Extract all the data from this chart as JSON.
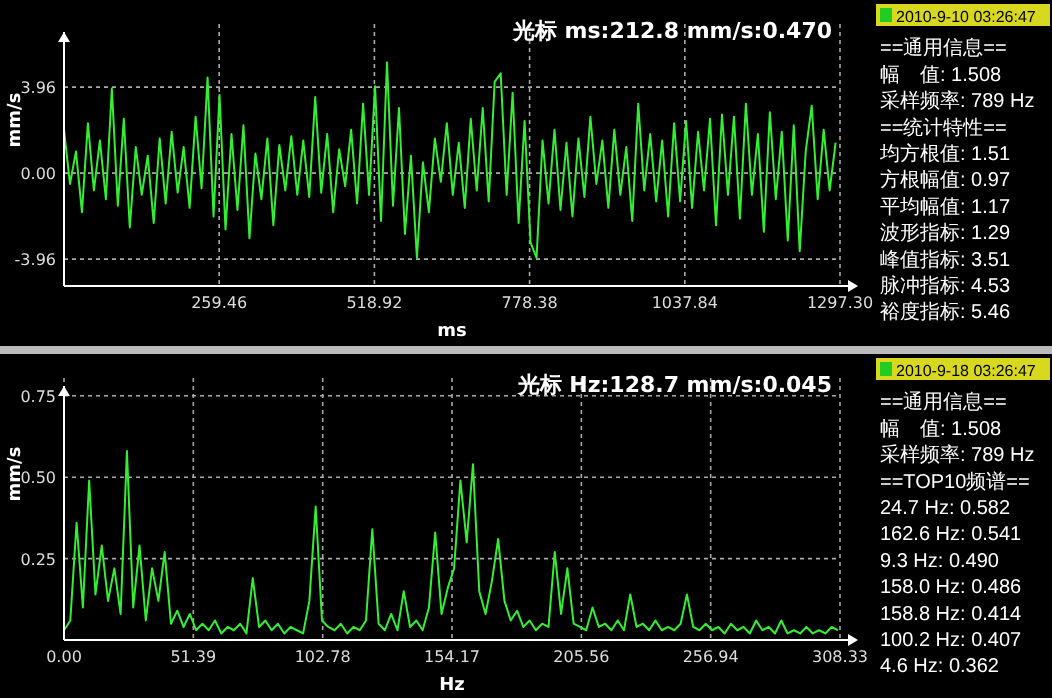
{
  "chart_data": [
    {
      "type": "line",
      "title": "光标 ms:212.8   mm/s:0.470",
      "xlabel": "ms",
      "ylabel": "mm/s",
      "grid": true,
      "xlim": [
        0,
        1297.3
      ],
      "ylim": [
        -5.2,
        6.5
      ],
      "xticks": [
        259.46,
        518.92,
        778.38,
        1037.84,
        {
          "value": 1297.3,
          "label": "1297.30"
        }
      ],
      "yticks": [
        {
          "value": -3.96,
          "label": "-3.96"
        },
        {
          "value": 0,
          "label": "0.00"
        },
        3.96
      ],
      "x": [
        0,
        10,
        20,
        30,
        40,
        50,
        60,
        70,
        80,
        90,
        100,
        110,
        120,
        130,
        140,
        150,
        160,
        170,
        180,
        190,
        200,
        210,
        220,
        230,
        240,
        250,
        260,
        270,
        280,
        290,
        300,
        310,
        320,
        330,
        340,
        350,
        360,
        370,
        380,
        390,
        400,
        410,
        420,
        430,
        440,
        450,
        460,
        470,
        480,
        490,
        500,
        510,
        520,
        530,
        540,
        550,
        560,
        570,
        580,
        590,
        600,
        610,
        620,
        630,
        640,
        650,
        660,
        670,
        680,
        690,
        700,
        710,
        720,
        730,
        740,
        750,
        760,
        770,
        780,
        790,
        800,
        810,
        820,
        830,
        840,
        850,
        860,
        870,
        880,
        890,
        900,
        910,
        920,
        930,
        940,
        950,
        960,
        970,
        980,
        990,
        1000,
        1010,
        1020,
        1030,
        1040,
        1050,
        1060,
        1070,
        1080,
        1090,
        1100,
        1110,
        1120,
        1130,
        1140,
        1150,
        1160,
        1170,
        1180,
        1190,
        1200,
        1210,
        1220,
        1230,
        1240,
        1250,
        1260,
        1270,
        1280,
        1290
      ],
      "series": [
        {
          "color": "#33ee33",
          "values": [
            2.0,
            -0.5,
            1.0,
            -1.8,
            2.3,
            -0.8,
            1.5,
            -1.2,
            3.9,
            -1.5,
            2.5,
            -2.5,
            1.2,
            -1.0,
            0.8,
            -2.3,
            1.6,
            -1.4,
            1.9,
            -0.9,
            1.2,
            -1.6,
            2.6,
            -0.7,
            4.4,
            -2.0,
            3.6,
            -2.6,
            1.8,
            -1.7,
            2.2,
            -3.0,
            0.9,
            -1.2,
            1.6,
            -2.4,
            1.3,
            -0.8,
            1.7,
            -1.0,
            1.5,
            -1.1,
            3.5,
            -0.9,
            1.8,
            -1.8,
            1.1,
            -0.6,
            2.0,
            -1.4,
            3.2,
            -1.0,
            4.0,
            -2.2,
            5.1,
            -1.5,
            3.0,
            -2.8,
            0.8,
            -3.9,
            0.5,
            -1.8,
            1.6,
            -0.4,
            2.3,
            -1.0,
            1.4,
            -1.6,
            2.5,
            -0.8,
            3.0,
            -1.3,
            4.2,
            4.6,
            -1.0,
            3.7,
            -2.3,
            2.4,
            -3.2,
            -3.9,
            1.5,
            -1.4,
            2.0,
            -1.7,
            1.4,
            -2.0,
            1.6,
            -1.1,
            2.6,
            -0.5,
            1.5,
            -1.6,
            2.0,
            -1.0,
            1.2,
            -2.2,
            3.2,
            -0.8,
            1.8,
            -1.3,
            1.5,
            -2.0,
            2.3,
            -1.3,
            2.4,
            -1.6,
            1.9,
            -0.8,
            2.5,
            -2.4,
            2.7,
            -1.0,
            2.6,
            -2.1,
            3.2,
            -1.0,
            1.8,
            -2.7,
            2.8,
            -1.2,
            1.9,
            -3.1,
            2.2,
            -3.6,
            1.0,
            3.1,
            -1.2,
            2.0,
            -0.8,
            1.4
          ]
        }
      ],
      "annotations": [
        "2010-9-10 03:26:47",
        "==通用信息==",
        "幅　值: 1.508",
        "采样频率: 789 Hz",
        "==统计特性==",
        "均方根值: 1.51",
        "方根幅值: 0.97",
        "平均幅值: 1.17",
        "波形指标: 1.29",
        "峰值指标: 3.51",
        "脉冲指标: 4.53",
        "裕度指标: 5.46"
      ]
    },
    {
      "type": "line",
      "title": "光标 Hz:128.7   mm/s:0.045",
      "xlabel": "Hz",
      "ylabel": "mm/s",
      "grid": true,
      "xlim": [
        0,
        308.33
      ],
      "ylim": [
        0,
        0.78
      ],
      "xticks": [
        {
          "value": 0,
          "label": "0.00"
        },
        51.39,
        102.78,
        154.17,
        205.56,
        256.94,
        308.33
      ],
      "yticks": [
        0.25,
        {
          "value": 0.5,
          "label": "0.50"
        },
        0.75
      ],
      "x": [
        0,
        2.5,
        5,
        7.5,
        10,
        12.5,
        15,
        17.5,
        20,
        22.5,
        25,
        27.5,
        30,
        32.5,
        35,
        37.5,
        40,
        42.5,
        45,
        47.5,
        50,
        52.5,
        55,
        57.5,
        60,
        62.5,
        65,
        67.5,
        70,
        72.5,
        75,
        77.5,
        80,
        82.5,
        85,
        87.5,
        90,
        92.5,
        95,
        97.5,
        100,
        102.5,
        105,
        107.5,
        110,
        112.5,
        115,
        117.5,
        120,
        122.5,
        125,
        127.5,
        130,
        132.5,
        135,
        137.5,
        140,
        142.5,
        145,
        147.5,
        150,
        152.5,
        155,
        157.5,
        160,
        162.5,
        165,
        167.5,
        170,
        172.5,
        175,
        177.5,
        180,
        182.5,
        185,
        187.5,
        190,
        192.5,
        195,
        197.5,
        200,
        202.5,
        205,
        207.5,
        210,
        212.5,
        215,
        217.5,
        220,
        222.5,
        225,
        227.5,
        230,
        232.5,
        235,
        237.5,
        240,
        242.5,
        245,
        247.5,
        250,
        252.5,
        255,
        257.5,
        260,
        262.5,
        265,
        267.5,
        270,
        272.5,
        275,
        277.5,
        280,
        282.5,
        285,
        287.5,
        290,
        292.5,
        295,
        297.5,
        300,
        302.5,
        305,
        307.5
      ],
      "series": [
        {
          "color": "#33ee33",
          "values": [
            0.03,
            0.06,
            0.36,
            0.1,
            0.49,
            0.14,
            0.29,
            0.12,
            0.22,
            0.08,
            0.58,
            0.1,
            0.29,
            0.06,
            0.22,
            0.12,
            0.27,
            0.05,
            0.09,
            0.04,
            0.08,
            0.03,
            0.05,
            0.03,
            0.06,
            0.02,
            0.04,
            0.03,
            0.05,
            0.02,
            0.19,
            0.04,
            0.06,
            0.03,
            0.05,
            0.02,
            0.04,
            0.03,
            0.02,
            0.12,
            0.41,
            0.06,
            0.04,
            0.03,
            0.05,
            0.02,
            0.04,
            0.03,
            0.06,
            0.34,
            0.05,
            0.03,
            0.08,
            0.03,
            0.15,
            0.04,
            0.06,
            0.03,
            0.1,
            0.33,
            0.08,
            0.16,
            0.22,
            0.49,
            0.3,
            0.54,
            0.15,
            0.08,
            0.18,
            0.31,
            0.12,
            0.06,
            0.09,
            0.04,
            0.06,
            0.03,
            0.05,
            0.04,
            0.27,
            0.08,
            0.22,
            0.05,
            0.04,
            0.03,
            0.1,
            0.04,
            0.05,
            0.03,
            0.06,
            0.03,
            0.14,
            0.04,
            0.05,
            0.03,
            0.06,
            0.03,
            0.04,
            0.03,
            0.05,
            0.14,
            0.04,
            0.03,
            0.05,
            0.03,
            0.04,
            0.02,
            0.05,
            0.03,
            0.04,
            0.02,
            0.06,
            0.03,
            0.04,
            0.02,
            0.06,
            0.02,
            0.03,
            0.02,
            0.04,
            0.02,
            0.03,
            0.02,
            0.04,
            0.03
          ]
        }
      ],
      "annotations": [
        "2010-9-18 03:26:47",
        "==通用信息==",
        "幅　值: 1.508",
        "采样频率: 789 Hz",
        "==TOP10频谱==",
        "24.7 Hz: 0.582",
        "162.6 Hz: 0.541",
        "9.3 Hz: 0.490",
        "158.0 Hz: 0.486",
        "158.8 Hz: 0.414",
        "100.2 Hz: 0.407",
        "4.6 Hz: 0.362"
      ]
    }
  ]
}
